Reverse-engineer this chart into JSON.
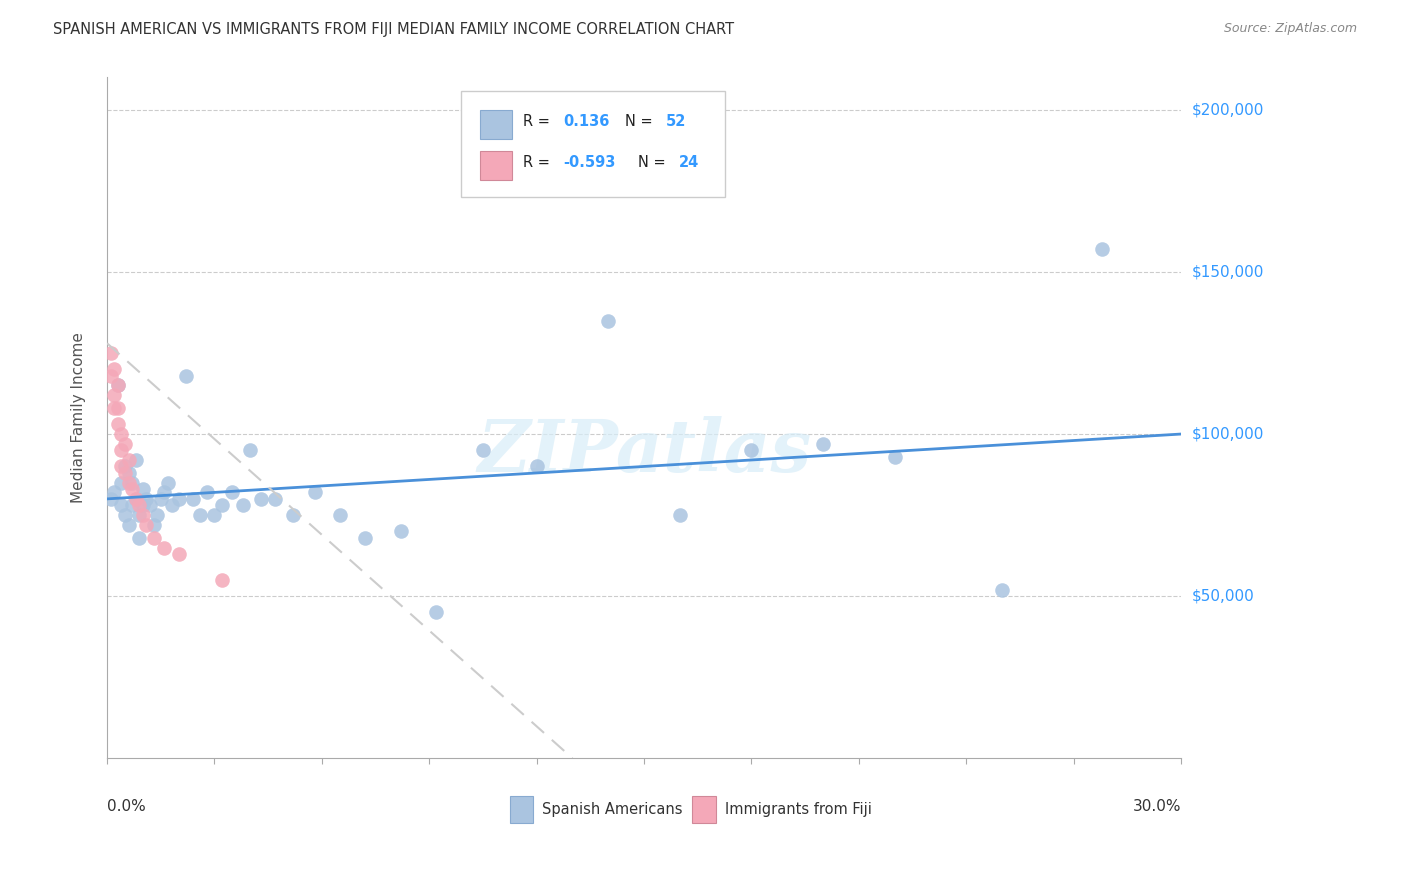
{
  "title": "SPANISH AMERICAN VS IMMIGRANTS FROM FIJI MEDIAN FAMILY INCOME CORRELATION CHART",
  "source": "Source: ZipAtlas.com",
  "ylabel": "Median Family Income",
  "series1_label": "Spanish Americans",
  "series2_label": "Immigrants from Fiji",
  "series1_color": "#aac4e0",
  "series2_color": "#f4a8b8",
  "trendline1_color": "#4a90d9",
  "trendline2_color": "#cccccc",
  "background_color": "#ffffff",
  "watermark": "ZIPatlas",
  "xlim": [
    0.0,
    0.3
  ],
  "ylim": [
    0,
    210000
  ],
  "ytick_vals": [
    50000,
    100000,
    150000,
    200000
  ],
  "ytick_labels": [
    "$50,000",
    "$100,000",
    "$150,000",
    "$200,000"
  ],
  "blue_x": [
    0.001,
    0.002,
    0.003,
    0.004,
    0.004,
    0.005,
    0.005,
    0.006,
    0.006,
    0.007,
    0.007,
    0.008,
    0.008,
    0.009,
    0.009,
    0.01,
    0.01,
    0.011,
    0.012,
    0.013,
    0.014,
    0.015,
    0.016,
    0.017,
    0.018,
    0.02,
    0.022,
    0.024,
    0.026,
    0.028,
    0.03,
    0.032,
    0.035,
    0.038,
    0.04,
    0.043,
    0.047,
    0.052,
    0.058,
    0.065,
    0.072,
    0.082,
    0.092,
    0.105,
    0.12,
    0.14,
    0.16,
    0.18,
    0.2,
    0.22,
    0.25,
    0.278
  ],
  "blue_y": [
    80000,
    82000,
    115000,
    85000,
    78000,
    90000,
    75000,
    88000,
    72000,
    85000,
    78000,
    92000,
    80000,
    75000,
    68000,
    83000,
    78000,
    80000,
    78000,
    72000,
    75000,
    80000,
    82000,
    85000,
    78000,
    80000,
    118000,
    80000,
    75000,
    82000,
    75000,
    78000,
    82000,
    78000,
    95000,
    80000,
    80000,
    75000,
    82000,
    75000,
    68000,
    70000,
    45000,
    95000,
    90000,
    135000,
    75000,
    95000,
    97000,
    93000,
    52000,
    157000
  ],
  "pink_x": [
    0.001,
    0.001,
    0.002,
    0.002,
    0.002,
    0.003,
    0.003,
    0.003,
    0.004,
    0.004,
    0.004,
    0.005,
    0.005,
    0.006,
    0.006,
    0.007,
    0.008,
    0.009,
    0.01,
    0.011,
    0.013,
    0.016,
    0.02,
    0.032
  ],
  "pink_y": [
    125000,
    118000,
    120000,
    112000,
    108000,
    115000,
    108000,
    103000,
    100000,
    95000,
    90000,
    97000,
    88000,
    92000,
    85000,
    83000,
    80000,
    78000,
    75000,
    72000,
    68000,
    65000,
    63000,
    55000
  ],
  "blue_trend_x": [
    0.0,
    0.3
  ],
  "blue_trend_y": [
    80000,
    100000
  ],
  "pink_trend_x": [
    0.0,
    0.13
  ],
  "pink_trend_y": [
    128000,
    0
  ],
  "legend_r1_label": "R =",
  "legend_r1_val": "0.136",
  "legend_r1_n_label": "N =",
  "legend_r1_n_val": "52",
  "legend_r2_label": "R =",
  "legend_r2_val": "-0.593",
  "legend_r2_n_label": "N =",
  "legend_r2_n_val": "24"
}
